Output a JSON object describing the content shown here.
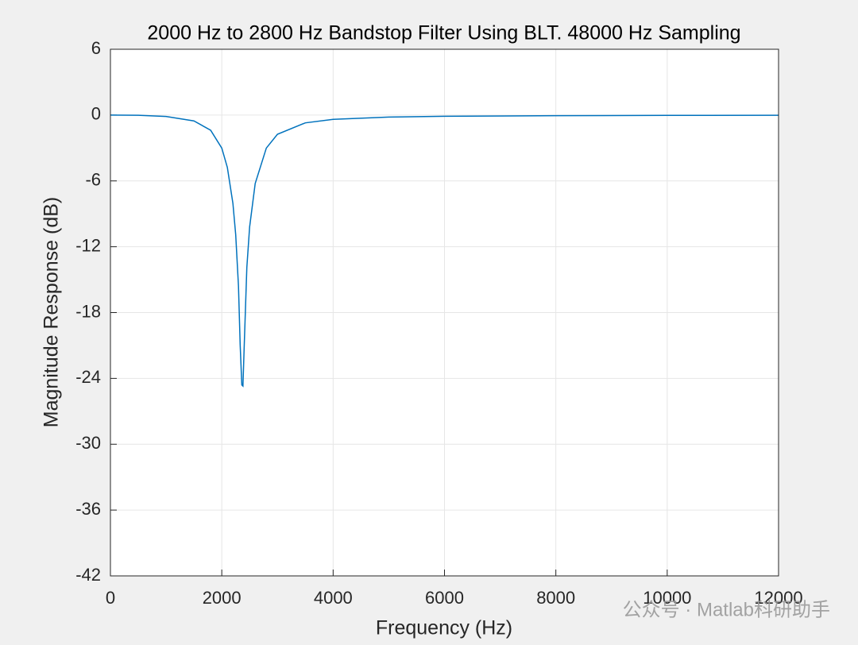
{
  "chart_data": {
    "type": "line",
    "title": "2000 Hz to 2800 Hz Bandstop Filter Using BLT. 48000 Hz Sampling",
    "xlabel": "Frequency (Hz)",
    "ylabel": "Magnitude Response (dB)",
    "x": [
      0,
      500,
      1000,
      1500,
      1800,
      2000,
      2100,
      2200,
      2250,
      2300,
      2330,
      2360,
      2380,
      2400,
      2450,
      2500,
      2600,
      2800,
      3000,
      3500,
      4000,
      5000,
      6000,
      8000,
      10000,
      12000
    ],
    "series": [
      {
        "color": "#0072bd",
        "values": [
          0,
          -0.02,
          -0.13,
          -0.53,
          -1.38,
          -3.01,
          -4.77,
          -8.05,
          -10.9,
          -15.6,
          -20.9,
          -24.6,
          -24.7,
          -21.5,
          -13.9,
          -10.2,
          -6.24,
          -3.01,
          -1.75,
          -0.71,
          -0.39,
          -0.18,
          -0.11,
          -0.05,
          -0.03,
          -0.02
        ]
      }
    ],
    "xlim": [
      0,
      12000
    ],
    "xticks": [
      0,
      2000,
      4000,
      6000,
      8000,
      10000,
      12000
    ],
    "ylim": [
      -42,
      6
    ],
    "yticks": [
      -42,
      -36,
      -30,
      -24,
      -18,
      -12,
      -6,
      0,
      6
    ],
    "grid": true,
    "watermark": "公众号 · Matlab科研助手"
  }
}
